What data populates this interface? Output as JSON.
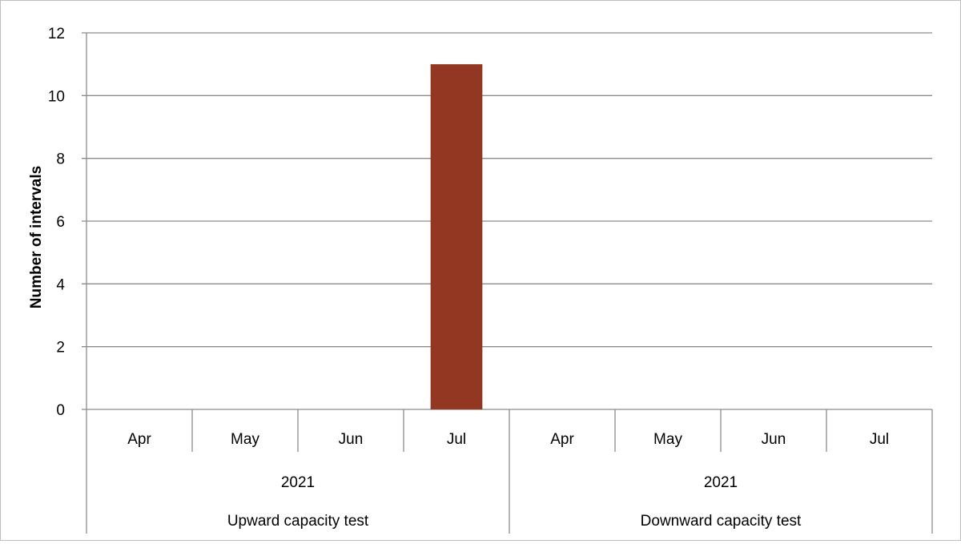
{
  "chart_data": {
    "type": "bar",
    "ylabel": "Number of intervals",
    "xlabel": "",
    "ylim": [
      0,
      12
    ],
    "yticks": [
      0,
      2,
      4,
      6,
      8,
      10,
      12
    ],
    "grid": true,
    "legend": "none",
    "bar_color": "#943722",
    "categories": [
      "Apr",
      "May",
      "Jun",
      "Jul",
      "Apr",
      "May",
      "Jun",
      "Jul"
    ],
    "values": [
      0,
      0,
      0,
      11,
      0,
      0,
      0,
      0
    ],
    "category_groups": [
      {
        "year": "2021",
        "test": "Upward capacity test"
      },
      {
        "year": "2021",
        "test": "Downward capacity test"
      }
    ]
  }
}
